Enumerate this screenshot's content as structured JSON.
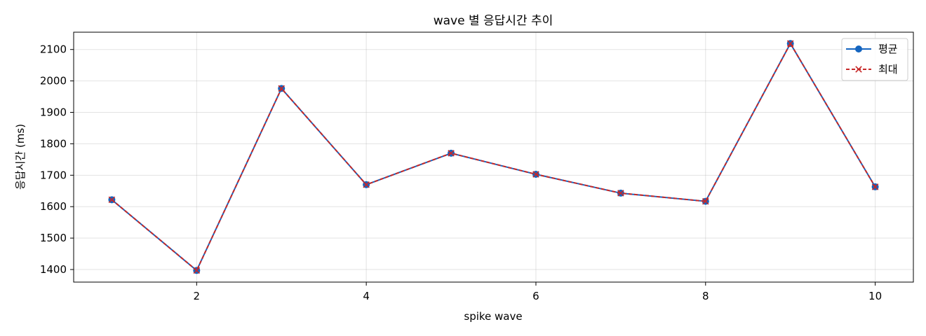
{
  "chart_data": {
    "type": "line",
    "title": "wave 별 응답시간 추이",
    "xlabel": "spike wave",
    "ylabel": "응답시간 (ms)",
    "x": [
      1,
      2,
      3,
      4,
      5,
      6,
      7,
      8,
      9,
      10
    ],
    "xlim": [
      0.55,
      10.45
    ],
    "ylim": [
      1360,
      2155
    ],
    "xticks": [
      2,
      4,
      6,
      8,
      10
    ],
    "yticks": [
      1400,
      1500,
      1600,
      1700,
      1800,
      1900,
      2000,
      2100
    ],
    "grid": true,
    "legend_position": "top-right",
    "series": [
      {
        "name": "평균",
        "values": [
          1622,
          1397,
          1976,
          1670,
          1770,
          1703,
          1643,
          1617,
          2119,
          1663
        ],
        "color": "#1565c0",
        "line_style": "solid",
        "marker": "circle"
      },
      {
        "name": "최대",
        "values": [
          1622,
          1397,
          1976,
          1670,
          1770,
          1703,
          1643,
          1617,
          2119,
          1663
        ],
        "color": "#c62828",
        "line_style": "dashed",
        "marker": "x"
      }
    ]
  }
}
